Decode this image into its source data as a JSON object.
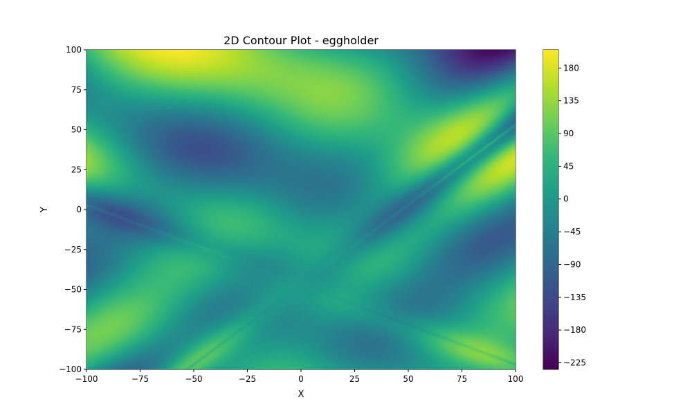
{
  "chart_data": {
    "type": "heatmap",
    "title": "2D Contour Plot - eggholder",
    "xlabel": "X",
    "ylabel": "Y",
    "xlim": [
      -100,
      100
    ],
    "ylim": [
      -100,
      100
    ],
    "function": "eggholder",
    "colormap": "viridis",
    "x_ticks": [
      -100,
      -75,
      -50,
      -25,
      0,
      25,
      50,
      75,
      100
    ],
    "y_ticks": [
      -100,
      -75,
      -50,
      -25,
      0,
      25,
      50,
      75,
      100
    ],
    "x_tick_labels": [
      "−100",
      "−75",
      "−50",
      "−25",
      "0",
      "25",
      "50",
      "75",
      "100"
    ],
    "y_tick_labels": [
      "−100",
      "−75",
      "−50",
      "−25",
      "0",
      "25",
      "50",
      "75",
      "100"
    ],
    "colorbar": {
      "range": [
        -234,
        205
      ],
      "ticks": [
        -225,
        -180,
        -135,
        -90,
        -45,
        0,
        45,
        90,
        135,
        180
      ],
      "tick_labels": [
        "−225",
        "−180",
        "−135",
        "−90",
        "−45",
        "0",
        "45",
        "90",
        "135",
        "180"
      ]
    },
    "grid": false,
    "colors": [
      "#440154",
      "#482878",
      "#3e4989",
      "#31688e",
      "#26828e",
      "#1f9e89",
      "#35b779",
      "#6ece58",
      "#b5de2b",
      "#fde725"
    ]
  }
}
